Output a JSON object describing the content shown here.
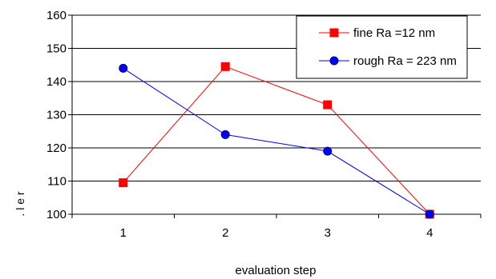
{
  "chart_data": {
    "type": "line",
    "title": "",
    "xlabel": "evaluation step",
    "ylabel": ". l e r",
    "categories": [
      "1",
      "2",
      "3",
      "4"
    ],
    "ylim": [
      100,
      160
    ],
    "yticks": [
      "100",
      "110",
      "120",
      "130",
      "140",
      "150",
      "160"
    ],
    "grid": "horizontal",
    "legend_position": "top-right",
    "series": [
      {
        "name": "fine Ra =12 nm",
        "values": [
          109.5,
          144.5,
          133,
          100
        ],
        "color": "#ff0000",
        "marker": "square",
        "marker_fill": "#ff0000"
      },
      {
        "name": "rough Ra = 223 nm",
        "values": [
          144,
          124,
          119,
          100
        ],
        "color": "#0000ff",
        "marker": "circle",
        "marker_fill": "#0000ff"
      }
    ]
  }
}
